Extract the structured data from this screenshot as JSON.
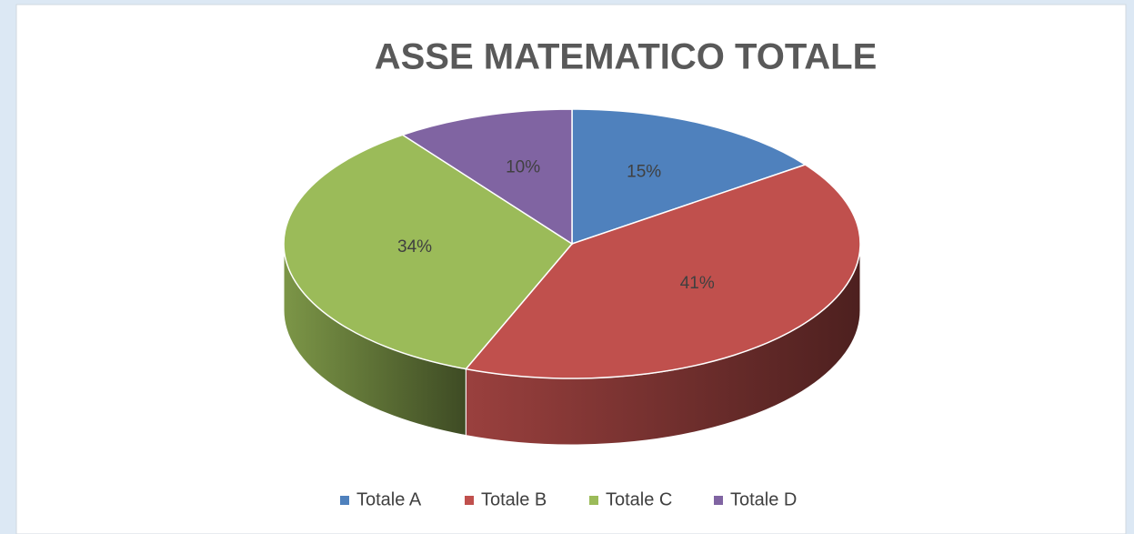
{
  "chart_data": {
    "type": "pie",
    "title": "ASSE MATEMATICO TOTALE",
    "categories": [
      "Totale A",
      "Totale B",
      "Totale C",
      "Totale D"
    ],
    "values": [
      15,
      41,
      34,
      10
    ],
    "value_labels": [
      "15%",
      "41%",
      "34%",
      "10%"
    ],
    "colors": [
      "#4f81bd",
      "#c0504d",
      "#9bbb59",
      "#8064a2"
    ],
    "legend": "bottom"
  }
}
